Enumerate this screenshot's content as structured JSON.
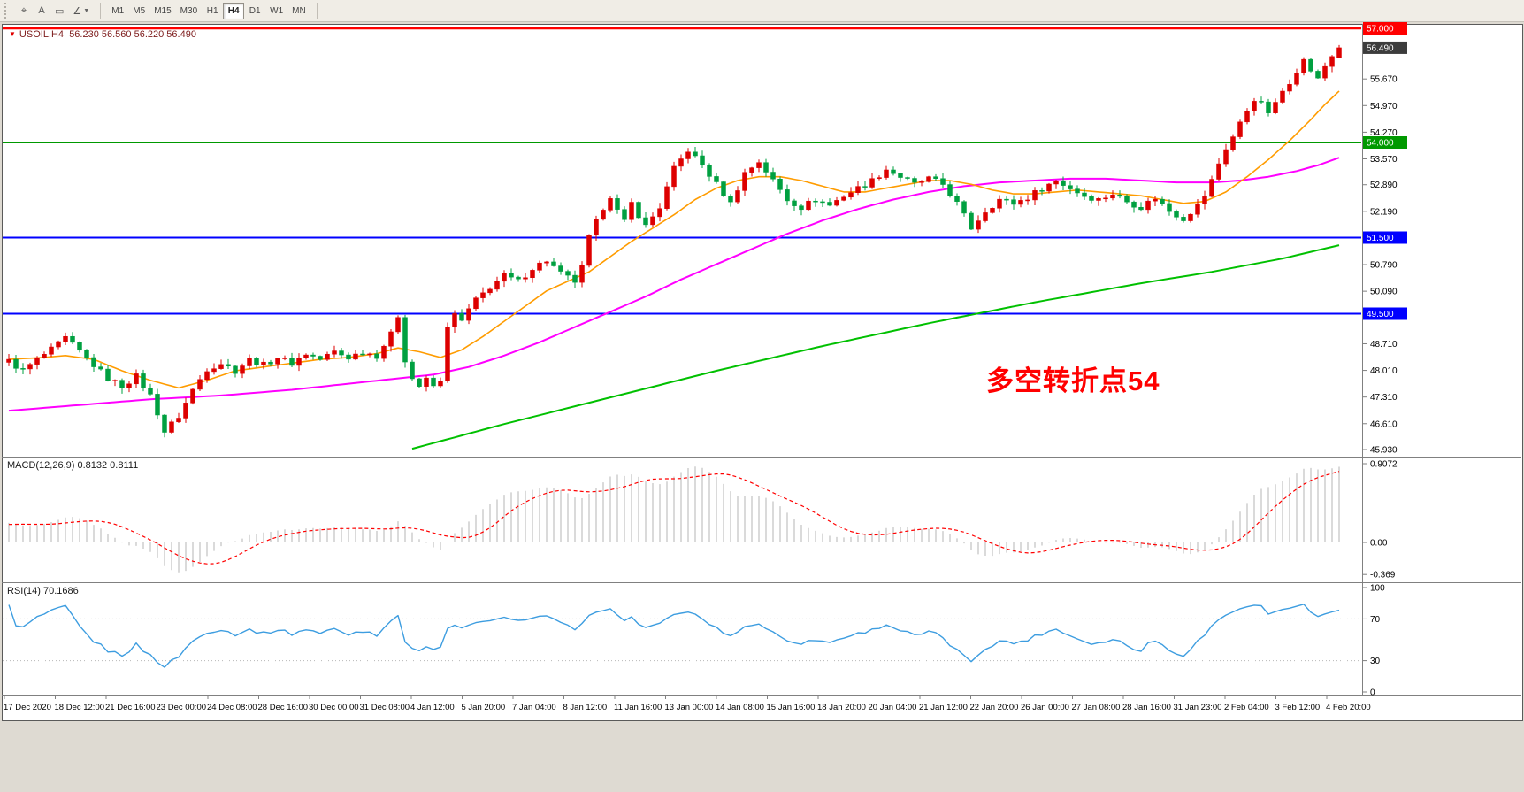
{
  "toolbar": {
    "icon_buttons": [
      {
        "name": "crosshair-tool-icon",
        "glyph": "⌖"
      },
      {
        "name": "text-tool-icon",
        "glyph": "A"
      },
      {
        "name": "text-label-tool-icon",
        "glyph": "▭"
      },
      {
        "name": "shapes-tool-icon",
        "glyph": "∠",
        "dropdown": true
      }
    ],
    "timeframes": [
      {
        "label": "M1",
        "active": false
      },
      {
        "label": "M5",
        "active": false
      },
      {
        "label": "M15",
        "active": false
      },
      {
        "label": "M30",
        "active": false
      },
      {
        "label": "H1",
        "active": false
      },
      {
        "label": "H4",
        "active": true
      },
      {
        "label": "D1",
        "active": false
      },
      {
        "label": "W1",
        "active": false
      },
      {
        "label": "MN",
        "active": false
      }
    ]
  },
  "chart_header": {
    "symbol": "USOIL,H4",
    "ohlc": "56.230 56.560 56.220 56.490"
  },
  "annotation": {
    "text": "多空转折点54",
    "color": "#ff0000"
  },
  "indicators": {
    "macd": {
      "label": "MACD(12,26,9) 0.8132 0.8111",
      "values": [
        0.8132,
        0.8111
      ],
      "axis_labels": [
        {
          "value": 0.9072,
          "text": "0.9072"
        },
        {
          "value": 0,
          "text": "0.00"
        },
        {
          "value": -0.369,
          "text": "-0.369"
        }
      ]
    },
    "rsi": {
      "label": "RSI(14) 70.1686",
      "value": 70.1686,
      "axis_labels": [
        {
          "value": 100,
          "text": "100"
        },
        {
          "value": 70,
          "text": "70"
        },
        {
          "value": 30,
          "text": "30"
        },
        {
          "value": 0,
          "text": "0"
        }
      ],
      "levels": [
        70,
        30
      ]
    }
  },
  "chart_data": {
    "type": "candlestick",
    "symbol": "USOIL",
    "timeframe": "H4",
    "price_axis_range": [
      45.93,
      57.0
    ],
    "ohlc_current": {
      "open": 56.23,
      "high": 56.56,
      "low": 56.22,
      "close": 56.49
    },
    "colors": {
      "up": "#dd0000",
      "down": "#00a040",
      "ma_fast": "#ff9c00",
      "ma_mid": "#ff00ff",
      "ma_slow": "#00c000",
      "macd_histogram": "#b4b4b4",
      "macd_signal": "#ff0000",
      "rsi_line": "#3d9de0"
    },
    "hlines": [
      {
        "price": 57.0,
        "label": "57.000",
        "color": "#ff0000",
        "width": 2.5
      },
      {
        "price": 54.0,
        "label": "54.000",
        "color": "#009900",
        "width": 2
      },
      {
        "price": 51.5,
        "label": "51.500",
        "color": "#0000ff",
        "width": 2
      },
      {
        "price": 49.5,
        "label": "49.500",
        "color": "#0000ff",
        "width": 2
      }
    ],
    "current_price_badge": {
      "price": 56.49,
      "label": "56.490",
      "color": "#3c3c3c"
    },
    "price_ticks": [
      {
        "value": 55.67,
        "label": "55.670"
      },
      {
        "value": 54.97,
        "label": "54.970"
      },
      {
        "value": 54.27,
        "label": "54.270"
      },
      {
        "value": 53.57,
        "label": "53.570"
      },
      {
        "value": 52.89,
        "label": "52.890"
      },
      {
        "value": 52.19,
        "label": "52.190"
      },
      {
        "value": 50.79,
        "label": "50.790"
      },
      {
        "value": 50.09,
        "label": "50.090"
      },
      {
        "value": 48.71,
        "label": "48.710"
      },
      {
        "value": 48.01,
        "label": "48.010"
      },
      {
        "value": 47.31,
        "label": "47.310"
      },
      {
        "value": 46.61,
        "label": "46.610"
      },
      {
        "value": 45.93,
        "label": "45.930"
      }
    ],
    "time_labels": [
      "17 Dec 2020",
      "18 Dec 12:00",
      "21 Dec 16:00",
      "23 Dec 00:00",
      "24 Dec 08:00",
      "28 Dec 16:00",
      "30 Dec 00:00",
      "31 Dec 08:00",
      "4 Jan 12:00",
      "5 Jan 20:00",
      "7 Jan 04:00",
      "8 Jan 12:00",
      "11 Jan 16:00",
      "13 Jan 00:00",
      "14 Jan 08:00",
      "15 Jan 16:00",
      "18 Jan 20:00",
      "20 Jan 04:00",
      "21 Jan 12:00",
      "22 Jan 20:00",
      "26 Jan 00:00",
      "27 Jan 08:00",
      "28 Jan 16:00",
      "31 Jan 23:00",
      "2 Feb 04:00",
      "3 Feb 12:00",
      "4 Feb 20:00"
    ],
    "price_keyframes": [
      [
        0,
        48.25
      ],
      [
        2,
        48.0
      ],
      [
        4,
        48.3
      ],
      [
        6,
        48.55
      ],
      [
        8,
        48.85
      ],
      [
        10,
        48.5
      ],
      [
        12,
        48.15
      ],
      [
        14,
        47.8
      ],
      [
        16,
        47.6
      ],
      [
        18,
        47.85
      ],
      [
        20,
        47.35
      ],
      [
        21,
        46.9
      ],
      [
        22,
        46.4
      ],
      [
        24,
        46.8
      ],
      [
        26,
        47.5
      ],
      [
        28,
        48.05
      ],
      [
        30,
        48.2
      ],
      [
        32,
        48.0
      ],
      [
        34,
        48.3
      ],
      [
        36,
        48.15
      ],
      [
        38,
        48.35
      ],
      [
        40,
        48.2
      ],
      [
        42,
        48.45
      ],
      [
        44,
        48.3
      ],
      [
        46,
        48.5
      ],
      [
        48,
        48.35
      ],
      [
        50,
        48.5
      ],
      [
        52,
        48.4
      ],
      [
        54,
        48.95
      ],
      [
        55,
        49.45
      ],
      [
        56,
        48.3
      ],
      [
        57,
        47.8
      ],
      [
        58,
        47.6
      ],
      [
        59,
        47.75
      ],
      [
        60,
        47.6
      ],
      [
        61,
        47.7
      ],
      [
        62,
        49.2
      ],
      [
        63,
        49.45
      ],
      [
        64,
        49.3
      ],
      [
        65,
        49.6
      ],
      [
        66,
        49.85
      ],
      [
        68,
        50.2
      ],
      [
        70,
        50.5
      ],
      [
        72,
        50.35
      ],
      [
        74,
        50.7
      ],
      [
        76,
        50.9
      ],
      [
        78,
        50.55
      ],
      [
        80,
        50.35
      ],
      [
        81,
        50.7
      ],
      [
        82,
        51.5
      ],
      [
        84,
        52.3
      ],
      [
        85,
        52.6
      ],
      [
        86,
        52.2
      ],
      [
        87,
        51.9
      ],
      [
        88,
        52.4
      ],
      [
        89,
        52.1
      ],
      [
        90,
        51.8
      ],
      [
        92,
        52.3
      ],
      [
        94,
        53.3
      ],
      [
        96,
        53.8
      ],
      [
        98,
        53.4
      ],
      [
        100,
        52.9
      ],
      [
        102,
        52.4
      ],
      [
        104,
        53.2
      ],
      [
        106,
        53.5
      ],
      [
        108,
        53.0
      ],
      [
        110,
        52.5
      ],
      [
        112,
        52.3
      ],
      [
        114,
        52.5
      ],
      [
        116,
        52.35
      ],
      [
        118,
        52.6
      ],
      [
        120,
        52.8
      ],
      [
        122,
        53.0
      ],
      [
        124,
        53.3
      ],
      [
        126,
        53.1
      ],
      [
        128,
        52.9
      ],
      [
        130,
        53.05
      ],
      [
        132,
        52.9
      ],
      [
        134,
        52.4
      ],
      [
        136,
        51.75
      ],
      [
        138,
        52.2
      ],
      [
        140,
        52.5
      ],
      [
        142,
        52.4
      ],
      [
        144,
        52.55
      ],
      [
        146,
        52.8
      ],
      [
        148,
        53.0
      ],
      [
        150,
        52.8
      ],
      [
        152,
        52.6
      ],
      [
        154,
        52.5
      ],
      [
        156,
        52.65
      ],
      [
        158,
        52.45
      ],
      [
        160,
        52.3
      ],
      [
        162,
        52.55
      ],
      [
        164,
        52.2
      ],
      [
        166,
        52.0
      ],
      [
        168,
        52.35
      ],
      [
        169,
        52.6
      ],
      [
        170,
        53.0
      ],
      [
        171,
        53.45
      ],
      [
        172,
        53.85
      ],
      [
        173,
        54.15
      ],
      [
        174,
        54.5
      ],
      [
        175,
        54.85
      ],
      [
        176,
        55.15
      ],
      [
        177,
        55.0
      ],
      [
        178,
        54.8
      ],
      [
        179,
        55.0
      ],
      [
        180,
        55.35
      ],
      [
        181,
        55.6
      ],
      [
        182,
        55.9
      ],
      [
        183,
        56.15
      ],
      [
        184,
        55.9
      ],
      [
        185,
        55.65
      ],
      [
        186,
        56.0
      ],
      [
        187,
        56.25
      ],
      [
        188,
        56.49
      ]
    ],
    "ma_fast_keyframes": [
      [
        0,
        48.3
      ],
      [
        5,
        48.35
      ],
      [
        8,
        48.4
      ],
      [
        12,
        48.3
      ],
      [
        16,
        48.0
      ],
      [
        20,
        47.75
      ],
      [
        24,
        47.55
      ],
      [
        28,
        47.75
      ],
      [
        32,
        48.0
      ],
      [
        36,
        48.1
      ],
      [
        40,
        48.2
      ],
      [
        44,
        48.3
      ],
      [
        48,
        48.35
      ],
      [
        52,
        48.45
      ],
      [
        55,
        48.6
      ],
      [
        58,
        48.5
      ],
      [
        61,
        48.35
      ],
      [
        64,
        48.55
      ],
      [
        67,
        48.9
      ],
      [
        70,
        49.3
      ],
      [
        73,
        49.7
      ],
      [
        76,
        50.1
      ],
      [
        79,
        50.35
      ],
      [
        82,
        50.6
      ],
      [
        85,
        51.0
      ],
      [
        88,
        51.4
      ],
      [
        91,
        51.75
      ],
      [
        94,
        52.1
      ],
      [
        97,
        52.5
      ],
      [
        100,
        52.8
      ],
      [
        103,
        53.0
      ],
      [
        106,
        53.1
      ],
      [
        109,
        53.1
      ],
      [
        112,
        53.0
      ],
      [
        115,
        52.85
      ],
      [
        118,
        52.7
      ],
      [
        121,
        52.7
      ],
      [
        124,
        52.8
      ],
      [
        127,
        52.9
      ],
      [
        130,
        53.0
      ],
      [
        133,
        53.0
      ],
      [
        136,
        52.9
      ],
      [
        139,
        52.75
      ],
      [
        142,
        52.65
      ],
      [
        145,
        52.65
      ],
      [
        148,
        52.7
      ],
      [
        151,
        52.75
      ],
      [
        154,
        52.7
      ],
      [
        157,
        52.65
      ],
      [
        160,
        52.6
      ],
      [
        163,
        52.5
      ],
      [
        166,
        52.4
      ],
      [
        169,
        52.45
      ],
      [
        172,
        52.7
      ],
      [
        175,
        53.1
      ],
      [
        178,
        53.55
      ],
      [
        181,
        54.05
      ],
      [
        184,
        54.6
      ],
      [
        186,
        55.0
      ],
      [
        188,
        55.35
      ]
    ],
    "ma_mid_keyframes": [
      [
        0,
        46.95
      ],
      [
        10,
        47.1
      ],
      [
        20,
        47.25
      ],
      [
        30,
        47.35
      ],
      [
        40,
        47.5
      ],
      [
        50,
        47.7
      ],
      [
        55,
        47.8
      ],
      [
        60,
        47.9
      ],
      [
        65,
        48.1
      ],
      [
        70,
        48.4
      ],
      [
        75,
        48.75
      ],
      [
        80,
        49.15
      ],
      [
        85,
        49.55
      ],
      [
        90,
        49.95
      ],
      [
        95,
        50.4
      ],
      [
        100,
        50.8
      ],
      [
        105,
        51.2
      ],
      [
        110,
        51.6
      ],
      [
        115,
        51.95
      ],
      [
        120,
        52.25
      ],
      [
        125,
        52.5
      ],
      [
        130,
        52.7
      ],
      [
        135,
        52.85
      ],
      [
        140,
        52.95
      ],
      [
        145,
        53.0
      ],
      [
        150,
        53.05
      ],
      [
        155,
        53.05
      ],
      [
        160,
        53.0
      ],
      [
        165,
        52.95
      ],
      [
        170,
        52.95
      ],
      [
        174,
        53.0
      ],
      [
        178,
        53.1
      ],
      [
        182,
        53.25
      ],
      [
        185,
        53.4
      ],
      [
        188,
        53.6
      ]
    ],
    "ma_slow_keyframes": [
      [
        57,
        45.95
      ],
      [
        70,
        46.6
      ],
      [
        85,
        47.3
      ],
      [
        100,
        48.0
      ],
      [
        115,
        48.65
      ],
      [
        130,
        49.25
      ],
      [
        145,
        49.8
      ],
      [
        160,
        50.3
      ],
      [
        170,
        50.6
      ],
      [
        180,
        50.95
      ],
      [
        188,
        51.3
      ]
    ]
  }
}
